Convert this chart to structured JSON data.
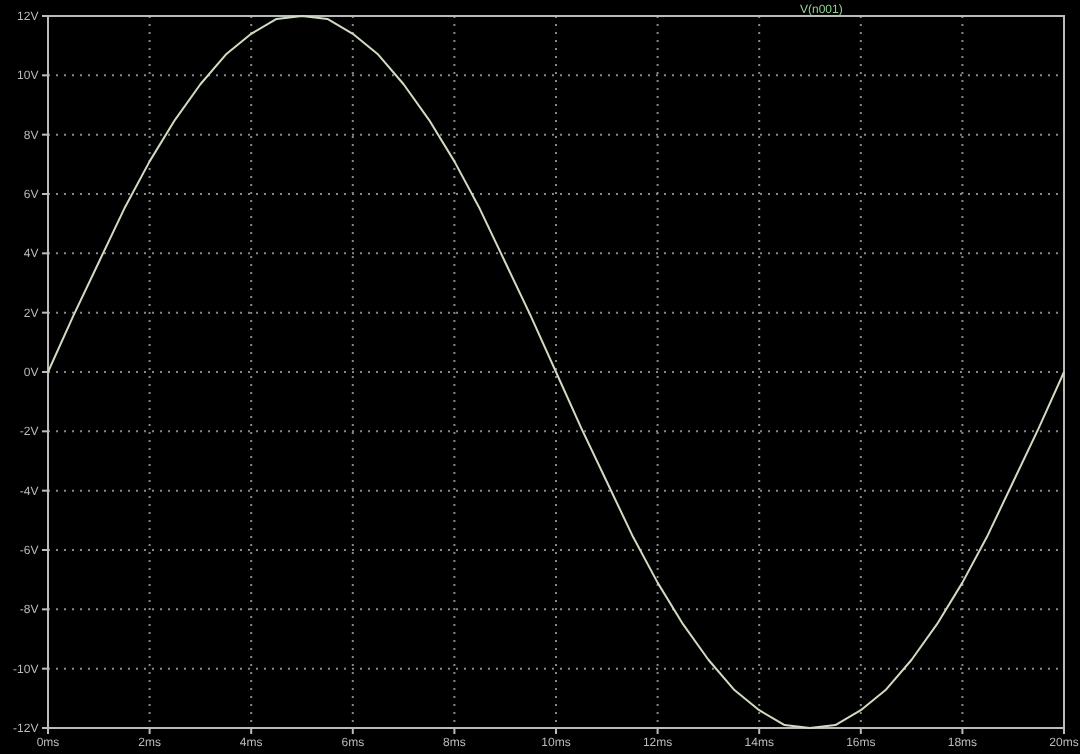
{
  "chart_data": {
    "type": "line",
    "x": [
      0,
      0.5,
      1,
      1.5,
      2,
      2.5,
      3,
      3.5,
      4,
      4.5,
      5,
      5.5,
      6,
      6.5,
      7,
      7.5,
      8,
      8.5,
      9,
      9.5,
      10,
      10.5,
      11,
      11.5,
      12,
      12.5,
      13,
      13.5,
      14,
      14.5,
      15,
      15.5,
      16,
      16.5,
      17,
      17.5,
      18,
      18.5,
      19,
      19.5,
      20
    ],
    "series": [
      {
        "name": "V(n001)",
        "color": "#cfdcc0",
        "values": [
          0,
          1.9,
          3.7,
          5.5,
          7.1,
          8.5,
          9.7,
          10.7,
          11.4,
          11.9,
          12,
          11.9,
          11.4,
          10.7,
          9.7,
          8.5,
          7.1,
          5.5,
          3.7,
          1.9,
          0,
          -1.9,
          -3.7,
          -5.5,
          -7.1,
          -8.5,
          -9.7,
          -10.7,
          -11.4,
          -11.9,
          -12,
          -11.9,
          -11.4,
          -10.7,
          -9.7,
          -8.5,
          -7.1,
          -5.5,
          -3.7,
          -1.9,
          0
        ]
      }
    ],
    "xlim": [
      0,
      20
    ],
    "xticks": [
      {
        "value": 0,
        "label": "0ms"
      },
      {
        "value": 2,
        "label": "2ms"
      },
      {
        "value": 4,
        "label": "4ms"
      },
      {
        "value": 6,
        "label": "6ms"
      },
      {
        "value": 8,
        "label": "8ms"
      },
      {
        "value": 10,
        "label": "10ms"
      },
      {
        "value": 12,
        "label": "12ms"
      },
      {
        "value": 14,
        "label": "14ms"
      },
      {
        "value": 16,
        "label": "16ms"
      },
      {
        "value": 18,
        "label": "18ms"
      },
      {
        "value": 20,
        "label": "20ms"
      }
    ],
    "ylim": [
      -12,
      12
    ],
    "yticks": [
      {
        "value": -12,
        "label": "-12V"
      },
      {
        "value": -10,
        "label": "-10V"
      },
      {
        "value": -8,
        "label": "-8V"
      },
      {
        "value": -6,
        "label": "-6V"
      },
      {
        "value": -4,
        "label": "-4V"
      },
      {
        "value": -2,
        "label": "-2V"
      },
      {
        "value": 0,
        "label": "0V"
      },
      {
        "value": 2,
        "label": "2V"
      },
      {
        "value": 4,
        "label": "4V"
      },
      {
        "value": 6,
        "label": "6V"
      },
      {
        "value": 8,
        "label": "8V"
      },
      {
        "value": 10,
        "label": "10V"
      },
      {
        "value": 12,
        "label": "12V"
      }
    ],
    "grid": true,
    "legend": "top right",
    "line_style": "solid",
    "marker": "none"
  }
}
